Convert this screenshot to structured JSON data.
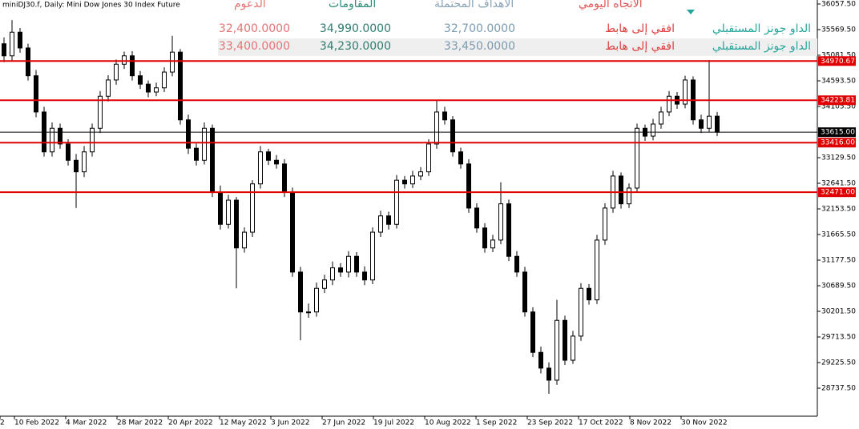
{
  "chart_data": {
    "type": "candlestick",
    "title": "miniDJ30.f, Daily:  Mini Dow Jones 30 Index Future",
    "open": [
      35300,
      35070,
      35520,
      35220,
      34690,
      34000,
      33240,
      33690,
      33390,
      33080,
      32860,
      33240,
      33690,
      34300,
      34610,
      34910,
      35070,
      34690,
      34530,
      34380,
      34460,
      34760,
      35140,
      33850,
      33310,
      33080,
      33690,
      32470,
      31860,
      32320,
      31410,
      31710,
      32630,
      33240,
      33080,
      33010,
      32470,
      30950,
      30190,
      30190,
      30640,
      30800,
      31030,
      30950,
      31250,
      30950,
      30800,
      31710,
      32020,
      31860,
      32700,
      32630,
      32780,
      32860,
      33390,
      34000,
      33850,
      33240,
      33010,
      32170,
      31790,
      31410,
      31560,
      32250,
      31250,
      30950,
      30190,
      29420,
      29120,
      28890,
      30030,
      29270,
      29730,
      30640,
      30420,
      31560,
      32170,
      32780,
      32250,
      32550,
      33690,
      33540,
      33770,
      34000,
      34300,
      34150,
      34610,
      33850,
      33690,
      33920
    ],
    "high": [
      35420,
      35750,
      35600,
      35300,
      34800,
      34100,
      33800,
      33780,
      33480,
      33200,
      33350,
      33780,
      34400,
      34700,
      35000,
      35150,
      35160,
      34780,
      34600,
      34560,
      34850,
      35450,
      35200,
      33950,
      33400,
      33800,
      33760,
      32600,
      32420,
      32380,
      31800,
      32700,
      33350,
      33300,
      33180,
      33100,
      32560,
      31050,
      30350,
      30750,
      30900,
      31150,
      31120,
      31350,
      31330,
      31060,
      31800,
      32120,
      32100,
      32800,
      32780,
      32880,
      32950,
      33480,
      34230,
      34100,
      33920,
      33320,
      33100,
      32260,
      31880,
      31660,
      32660,
      32330,
      31350,
      31050,
      30280,
      29530,
      29230,
      30420,
      30120,
      29830,
      30740,
      30720,
      31660,
      32260,
      32880,
      32850,
      32640,
      33780,
      33760,
      33870,
      34100,
      34400,
      34380,
      34690,
      34680,
      33950,
      34990,
      34000
    ],
    "low": [
      34950,
      34980,
      35130,
      34600,
      33900,
      33150,
      33150,
      33300,
      32980,
      32170,
      32760,
      33150,
      33600,
      34200,
      34520,
      34820,
      34600,
      34440,
      34280,
      34300,
      34380,
      34680,
      33760,
      33200,
      32980,
      33000,
      32380,
      31760,
      31780,
      30640,
      31320,
      31620,
      32540,
      32990,
      32920,
      32380,
      30860,
      29650,
      30080,
      30100,
      30550,
      30700,
      30860,
      30850,
      30860,
      30700,
      30720,
      31620,
      31760,
      31780,
      32540,
      32550,
      32700,
      32780,
      33300,
      33760,
      33150,
      32920,
      32080,
      31700,
      31320,
      31330,
      31480,
      31160,
      30860,
      30100,
      29330,
      29020,
      28630,
      28800,
      29180,
      29200,
      29640,
      30330,
      30340,
      31470,
      32080,
      32160,
      32170,
      32460,
      33450,
      33460,
      33680,
      33920,
      34060,
      34070,
      33760,
      33600,
      33620,
      33540
    ],
    "close": [
      35070,
      35520,
      35220,
      34690,
      34000,
      33240,
      33690,
      33390,
      33080,
      32860,
      33240,
      33690,
      34300,
      34610,
      34910,
      35070,
      34690,
      34530,
      34380,
      34460,
      34760,
      35140,
      33850,
      33310,
      33080,
      33690,
      32470,
      31860,
      32320,
      31410,
      31710,
      32630,
      33240,
      33080,
      33010,
      32470,
      30950,
      30190,
      30190,
      30640,
      30800,
      31030,
      30950,
      31250,
      30950,
      30800,
      31710,
      32020,
      31860,
      32700,
      32630,
      32780,
      32860,
      33390,
      34000,
      33850,
      33240,
      33010,
      32170,
      31790,
      31410,
      31560,
      32250,
      31250,
      30950,
      30190,
      29420,
      29120,
      28890,
      30030,
      29270,
      29730,
      30640,
      30420,
      31560,
      32170,
      32780,
      32250,
      32550,
      33690,
      33540,
      33770,
      34000,
      34300,
      34150,
      34610,
      33850,
      33690,
      33920,
      33615
    ],
    "ylim": [
      28203.75,
      36133.75
    ],
    "yticks": [
      {
        "value": 36057.5,
        "label": "36057.50"
      },
      {
        "value": 35569.5,
        "label": "35569.50"
      },
      {
        "value": 35081.5,
        "label": "35081.50"
      },
      {
        "value": 34593.5,
        "label": "34593.50"
      },
      {
        "value": 34105.5,
        "label": "34105.50"
      },
      {
        "value": 33129.5,
        "label": "33129.50"
      },
      {
        "value": 32641.5,
        "label": "32641.50"
      },
      {
        "value": 32153.5,
        "label": "32153.50"
      },
      {
        "value": 31665.5,
        "label": "31665.50"
      },
      {
        "value": 31177.5,
        "label": "31177.50"
      },
      {
        "value": 30689.5,
        "label": "30689.50"
      },
      {
        "value": 30201.5,
        "label": "30201.50"
      },
      {
        "value": 29713.5,
        "label": "29713.50"
      },
      {
        "value": 29225.5,
        "label": "29225.50"
      },
      {
        "value": 28737.5,
        "label": "28737.50"
      }
    ],
    "xtick_labels": [
      "2",
      "10 Feb 2022",
      "4 Mar 2022",
      "28 Mar 2022",
      "20 Apr 2022",
      "12 May 2022",
      "3 Jun 2022",
      "27 Jun 2022",
      "19 Jul 2022",
      "10 Aug 2022",
      "1 Sep 2022",
      "23 Sep 2022",
      "17 Oct 2022",
      "8 Nov 2022",
      "30 Nov 2022"
    ],
    "levels": [
      {
        "value": 34970.67,
        "label": "34970.67"
      },
      {
        "value": 34223.81,
        "label": "34223.81"
      },
      {
        "value": 33416,
        "label": "33416.00"
      },
      {
        "value": 32471,
        "label": "32471.00"
      }
    ],
    "level_color": "#e00000",
    "current": {
      "value": 33615,
      "label": "33615.00"
    }
  },
  "table": {
    "header": [
      "الاتجاه اليومي",
      "الأهداف المحتملة",
      "المقاومات",
      "الدعوم"
    ],
    "rows": [
      [
        "الداو جونز المستقبلي",
        "افقي إلى هابط",
        "32,700.0000",
        "34,990.0000",
        "32,400.0000"
      ],
      [
        "الداو جونز المستقبلي",
        "افقي إلى هابط",
        "33,450.0000",
        "34,230.0000",
        "33,400.0000"
      ]
    ]
  }
}
